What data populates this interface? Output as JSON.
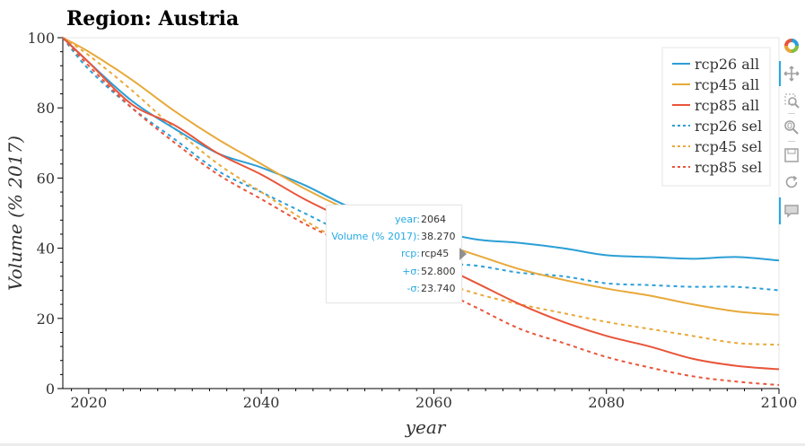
{
  "chart_data": {
    "type": "line",
    "title": "Region: Austria",
    "xlabel": "year",
    "ylabel": "Volume (% 2017)",
    "xlim": [
      2017,
      2100
    ],
    "ylim": [
      0,
      100
    ],
    "xticks": [
      2020,
      2040,
      2060,
      2080,
      2100
    ],
    "yticks": [
      0,
      20,
      40,
      60,
      80,
      100
    ],
    "legend_position": "top-right",
    "series": [
      {
        "name": "rcp26 all",
        "color": "#2b9fd6",
        "dash": "solid",
        "x": [
          2017,
          2020,
          2025,
          2030,
          2035,
          2040,
          2045,
          2050,
          2055,
          2060,
          2065,
          2070,
          2075,
          2080,
          2085,
          2090,
          2095,
          2100
        ],
        "y": [
          100,
          93,
          82,
          74,
          67,
          63,
          58,
          52,
          48,
          45,
          42.5,
          41.5,
          40,
          38,
          37.5,
          37,
          37.5,
          36.5
        ]
      },
      {
        "name": "rcp45 all",
        "color": "#e8a93a",
        "dash": "solid",
        "x": [
          2017,
          2020,
          2025,
          2030,
          2035,
          2040,
          2045,
          2050,
          2055,
          2060,
          2065,
          2070,
          2075,
          2080,
          2085,
          2090,
          2095,
          2100
        ],
        "y": [
          100,
          96,
          88,
          79,
          71,
          64,
          57,
          51,
          46,
          42,
          38,
          34,
          31,
          28.5,
          26.5,
          24,
          22,
          21
        ]
      },
      {
        "name": "rcp85 all",
        "color": "#e8553a",
        "dash": "solid",
        "x": [
          2017,
          2020,
          2025,
          2030,
          2035,
          2040,
          2045,
          2050,
          2055,
          2060,
          2065,
          2070,
          2075,
          2080,
          2085,
          2090,
          2095,
          2100
        ],
        "y": [
          100,
          93,
          81,
          75,
          67,
          61,
          54,
          48,
          42,
          36,
          30,
          24,
          19,
          15,
          12,
          8.5,
          6.5,
          5.5
        ]
      },
      {
        "name": "rcp26 sel",
        "color": "#2b9fd6",
        "dash": "dotted",
        "x": [
          2017,
          2020,
          2025,
          2030,
          2035,
          2040,
          2045,
          2050,
          2055,
          2060,
          2065,
          2070,
          2075,
          2080,
          2085,
          2090,
          2095,
          2100
        ],
        "y": [
          100,
          91,
          80,
          71,
          62,
          56,
          50,
          44,
          39,
          36,
          35,
          33,
          32,
          30,
          29.5,
          29,
          29,
          28
        ]
      },
      {
        "name": "rcp45 sel",
        "color": "#e8a93a",
        "dash": "dotted",
        "x": [
          2017,
          2020,
          2025,
          2030,
          2035,
          2040,
          2045,
          2050,
          2055,
          2060,
          2065,
          2070,
          2075,
          2080,
          2085,
          2090,
          2095,
          2100
        ],
        "y": [
          100,
          95,
          85,
          74,
          64,
          56,
          48,
          41,
          35,
          31,
          27,
          24,
          21.5,
          19,
          17,
          15,
          13,
          12.5
        ]
      },
      {
        "name": "rcp85 sel",
        "color": "#e8553a",
        "dash": "dotted",
        "x": [
          2017,
          2020,
          2025,
          2030,
          2035,
          2040,
          2045,
          2050,
          2055,
          2060,
          2065,
          2070,
          2075,
          2080,
          2085,
          2090,
          2095,
          2100
        ],
        "y": [
          100,
          92,
          80,
          70,
          61,
          54,
          47,
          41,
          35,
          29,
          23,
          17,
          13,
          9,
          6,
          3.5,
          2,
          1
        ]
      }
    ]
  },
  "tooltip": {
    "rows": [
      {
        "label": "year:",
        "value": "2064"
      },
      {
        "label": "Volume (% 2017):",
        "value": "38.270"
      },
      {
        "label": "rcp:",
        "value": "rcp45"
      },
      {
        "label": "+σ:",
        "value": "52.800"
      },
      {
        "label": "-σ:",
        "value": "23.740"
      }
    ]
  },
  "toolbar": {
    "tools": [
      "bokeh-logo-icon",
      "pan-icon",
      "box-zoom-icon",
      "wheel-zoom-icon",
      "save-icon",
      "reset-icon",
      "hover-icon"
    ]
  }
}
